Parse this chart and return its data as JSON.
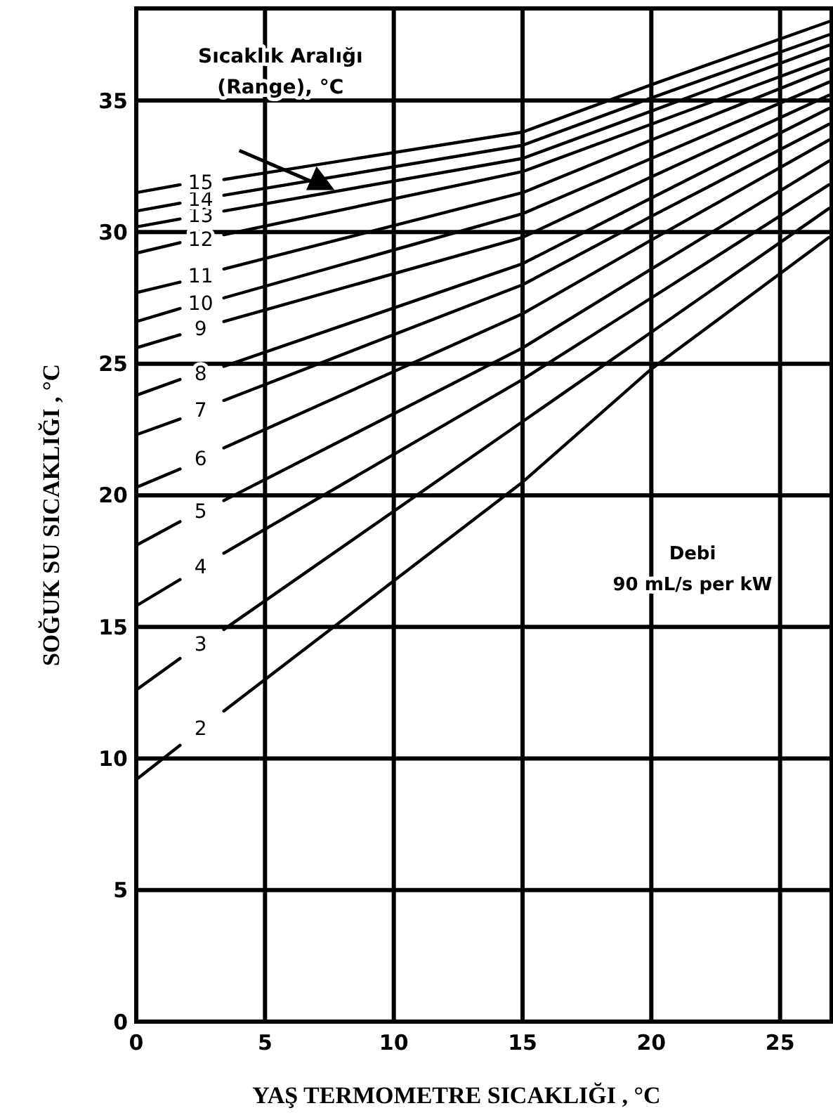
{
  "chart_data": {
    "type": "line",
    "xlabel": "YAŞ TERMOMETRE SICAKLIĞI ,  °C",
    "ylabel": "SOĞUK SU SICAKLIĞI , °C",
    "xlim": [
      0,
      27
    ],
    "ylim": [
      0,
      38.5
    ],
    "xticks": [
      0,
      5,
      10,
      15,
      20,
      25
    ],
    "yticks": [
      0,
      5,
      10,
      15,
      20,
      25,
      30,
      35
    ],
    "grid": true,
    "marker": "none",
    "line_style": "solid",
    "annotations": [
      "Sıcaklık Aralığı\n(Range), °C",
      "Debi\n90 mL/s per kW"
    ],
    "series": [
      {
        "name": "2",
        "color": "#000000",
        "x": [
          0,
          1.7,
          2.5,
          3.4,
          15,
          20,
          26.9
        ],
        "values": [
          9.2,
          10.5,
          null,
          11.8,
          20.5,
          24.8,
          29.8
        ]
      },
      {
        "name": "3",
        "color": "#000000",
        "x": [
          0,
          1.7,
          2.5,
          3.4,
          15,
          20,
          26.9
        ],
        "values": [
          12.6,
          13.8,
          null,
          14.9,
          22.8,
          26.2,
          30.9
        ]
      },
      {
        "name": "4",
        "color": "#000000",
        "x": [
          0,
          1.7,
          2.5,
          3.4,
          15,
          20,
          26.9
        ],
        "values": [
          15.8,
          16.8,
          null,
          17.8,
          24.4,
          27.5,
          31.8
        ]
      },
      {
        "name": "5",
        "color": "#000000",
        "x": [
          0,
          1.7,
          2.5,
          3.4,
          15,
          20,
          26.9
        ],
        "values": [
          18.1,
          19.0,
          null,
          19.8,
          25.6,
          28.6,
          32.7
        ]
      },
      {
        "name": "6",
        "color": "#000000",
        "x": [
          0,
          1.7,
          2.5,
          3.4,
          15,
          20,
          26.9
        ],
        "values": [
          20.3,
          21.0,
          null,
          21.8,
          26.9,
          29.7,
          33.5
        ]
      },
      {
        "name": "7",
        "color": "#000000",
        "x": [
          0,
          1.7,
          2.5,
          3.4,
          15,
          20,
          26.9
        ],
        "values": [
          22.3,
          22.9,
          null,
          23.6,
          28.0,
          30.6,
          34.1
        ]
      },
      {
        "name": "8",
        "color": "#000000",
        "x": [
          0,
          1.7,
          2.5,
          3.4,
          15,
          20,
          26.9
        ],
        "values": [
          23.8,
          24.4,
          null,
          24.9,
          28.8,
          31.3,
          34.7
        ]
      },
      {
        "name": "9",
        "color": "#000000",
        "x": [
          0,
          1.7,
          2.5,
          3.4,
          15,
          20,
          26.9
        ],
        "values": [
          25.6,
          26.1,
          null,
          26.6,
          29.8,
          32.1,
          35.2
        ]
      },
      {
        "name": "10",
        "color": "#000000",
        "x": [
          0,
          1.7,
          2.5,
          3.4,
          15,
          20,
          26.9
        ],
        "values": [
          26.6,
          27.1,
          null,
          27.5,
          30.7,
          32.8,
          35.7
        ]
      },
      {
        "name": "11",
        "color": "#000000",
        "x": [
          0,
          1.7,
          2.5,
          3.4,
          15,
          20,
          26.9
        ],
        "values": [
          27.7,
          28.1,
          null,
          28.6,
          31.5,
          33.5,
          36.2
        ]
      },
      {
        "name": "12",
        "color": "#000000",
        "x": [
          0,
          1.7,
          2.5,
          3.4,
          15,
          20,
          26.9
        ],
        "values": [
          29.2,
          29.6,
          null,
          29.9,
          32.3,
          34.1,
          36.6
        ]
      },
      {
        "name": "13",
        "color": "#000000",
        "x": [
          0,
          1.7,
          2.5,
          3.4,
          15,
          20,
          26.9
        ],
        "values": [
          30.2,
          30.5,
          null,
          30.8,
          32.8,
          34.6,
          37.1
        ]
      },
      {
        "name": "14",
        "color": "#000000",
        "x": [
          0,
          1.7,
          2.5,
          3.4,
          15,
          20,
          26.9
        ],
        "values": [
          30.8,
          31.1,
          null,
          31.4,
          33.3,
          35.1,
          37.5
        ]
      },
      {
        "name": "15",
        "color": "#000000",
        "x": [
          0,
          1.7,
          2.5,
          3.4,
          15,
          20,
          26.9
        ],
        "values": [
          31.5,
          31.8,
          null,
          32.0,
          33.8,
          35.6,
          38.0
        ]
      }
    ]
  }
}
